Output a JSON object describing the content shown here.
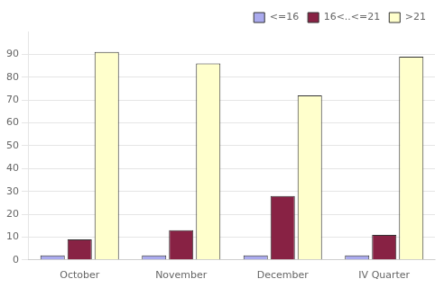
{
  "chart_data": {
    "type": "bar",
    "categories": [
      "October",
      "November",
      "December",
      "IV Quarter"
    ],
    "series": [
      {
        "name": "<=16",
        "values": [
          2,
          2,
          2,
          2
        ],
        "color": "#aaaaee"
      },
      {
        "name": "16<..<=21",
        "values": [
          9,
          13,
          28,
          11
        ],
        "color": "#882244"
      },
      {
        "name": ">21",
        "values": [
          91,
          86,
          72,
          89
        ],
        "color": "#ffffcc"
      }
    ],
    "ylim": [
      0,
      100
    ],
    "yticks": [
      0,
      10,
      20,
      30,
      40,
      50,
      60,
      70,
      80,
      90
    ],
    "grid": true,
    "legend": "upper right"
  }
}
